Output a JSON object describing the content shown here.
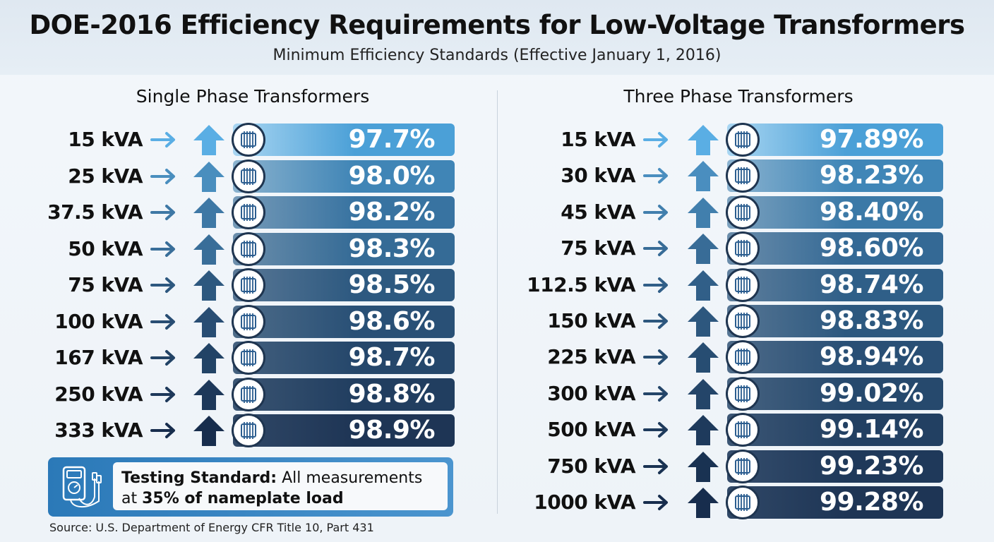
{
  "header": {
    "title": "DOE-2016 Efficiency Requirements for Low-Voltage Transformers",
    "subtitle": "Minimum Efficiency Standards (Effective January 1, 2016)"
  },
  "testing": {
    "lead": "Testing Standard:",
    "line1_rest": " All measurements",
    "line2_pre": "at ",
    "line2_bold": "35% of nameplate load"
  },
  "source": "Source: U.S. Department of Energy CFR Title 10, Part 431",
  "colors": {
    "light_blue": "#4ea6de",
    "dark_navy": "#1b2f4e",
    "arrow_light": "#5aaee4",
    "arrow_dark": "#172d4d"
  },
  "icons": [
    "arrow-right-icon",
    "arrow-up-icon",
    "transformer-coil-icon",
    "multimeter-icon"
  ],
  "chart_data": [
    {
      "type": "bar",
      "title": "Single Phase Transformers",
      "categories": [
        "15 kVA",
        "25 kVA",
        "37.5 kVA",
        "50 kVA",
        "75 kVA",
        "100 kVA",
        "167 kVA",
        "250 kVA",
        "333 kVA"
      ],
      "values": [
        97.7,
        98.0,
        98.2,
        98.3,
        98.5,
        98.6,
        98.7,
        98.8,
        98.9
      ],
      "labels": [
        "97.7%",
        "98.0%",
        "98.2%",
        "98.3%",
        "98.5%",
        "98.6%",
        "98.7%",
        "98.8%",
        "98.9%"
      ]
    },
    {
      "type": "bar",
      "title": "Three Phase Transformers",
      "categories": [
        "15 kVA",
        "30 kVA",
        "45 kVA",
        "75 kVA",
        "112.5 kVA",
        "150 kVA",
        "225 kVA",
        "300 kVA",
        "500 kVA",
        "750 kVA",
        "1000 kVA"
      ],
      "values": [
        97.89,
        98.23,
        98.4,
        98.6,
        98.74,
        98.83,
        98.94,
        99.02,
        99.14,
        99.23,
        99.28
      ],
      "labels": [
        "97.89%",
        "98.23%",
        "98.40%",
        "98.60%",
        "98.74%",
        "98.83%",
        "98.94%",
        "99.02%",
        "99.14%",
        "99.23%",
        "99.28%"
      ]
    }
  ]
}
